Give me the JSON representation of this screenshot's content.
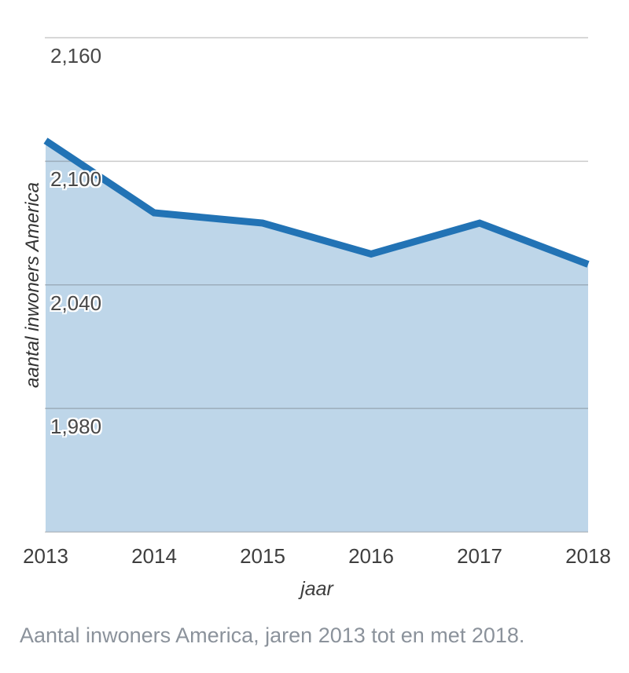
{
  "chart_data": {
    "type": "area",
    "title": "",
    "categories": [
      "2013",
      "2014",
      "2015",
      "2016",
      "2017",
      "2018"
    ],
    "values": [
      2110,
      2075,
      2070,
      2055,
      2070,
      2050
    ],
    "xlabel": "jaar",
    "ylabel": "aantal inwoners America",
    "ylim": [
      1920,
      2160
    ],
    "y_tick_step": 60,
    "y_ticks_labeled": [
      {
        "value": 2160,
        "label": "2,160"
      },
      {
        "value": 2100,
        "label": "2,100"
      },
      {
        "value": 2040,
        "label": "2,040"
      },
      {
        "value": 1980,
        "label": "1,980"
      }
    ],
    "grid": "horizontal",
    "legend": "none",
    "line_color": "#2273b5",
    "fill_color": "#bed6e9",
    "grid_color": "#c9c9c9"
  },
  "caption": "Aantal inwoners America, jaren 2013 tot en met 2018."
}
